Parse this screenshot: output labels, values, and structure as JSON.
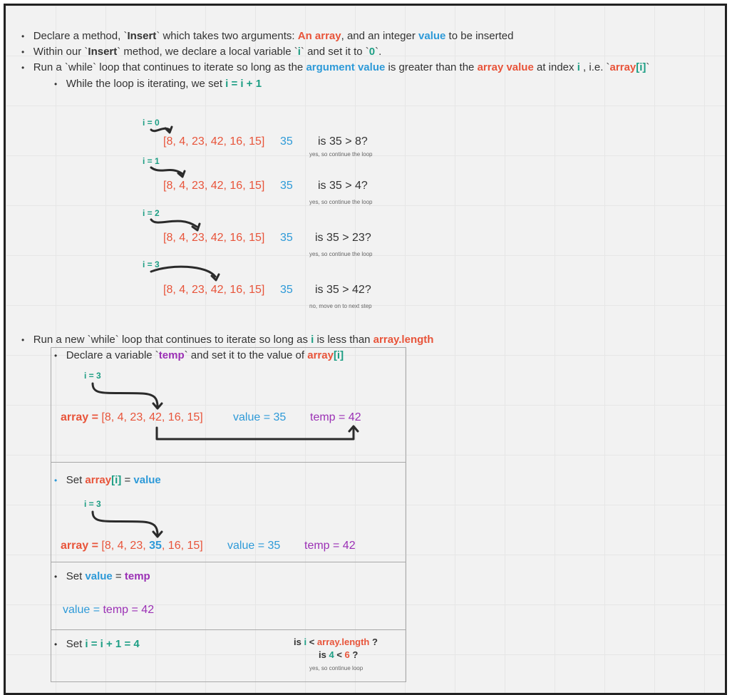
{
  "bullets": {
    "b1": {
      "p1": "Declare a method, `",
      "name": "Insert",
      "p2": "` which takes two arguments: ",
      "arr": "An array",
      "p3": ", and an integer ",
      "val": "value",
      "p4": " to be inserted"
    },
    "b2": {
      "p1": "Within our `",
      "name": "Insert",
      "p2": "` method, we declare a local variable `",
      "i": "i",
      "p3": "` and set it to `",
      "zero": "0",
      "p4": "`."
    },
    "b3": {
      "p1": "Run a `while` loop that continues to iterate so long as the ",
      "argval": "argument value",
      "p2": " is greater than the ",
      "arrval": "array value",
      "p3": " at index ",
      "i": "i",
      "p4": " , i.e. `",
      "arr": "array",
      "idx": "[i]",
      "p5": "`"
    },
    "b4": {
      "p1": "While the loop is iterating, we set ",
      "expr": "i = i + 1"
    }
  },
  "loop1": {
    "array_text": "[8, 4, 23, 42, 16, 15]",
    "value": "35",
    "rows": [
      {
        "i_label": "i = 0",
        "question": "is 35 > 8?",
        "note": "yes, so continue the loop"
      },
      {
        "i_label": "i = 1",
        "question": "is 35 > 4?",
        "note": "yes, so continue the loop"
      },
      {
        "i_label": "i = 2",
        "question": "is 35 > 23?",
        "note": "yes, so continue the loop"
      },
      {
        "i_label": "i = 3",
        "question": "is 35 > 42?",
        "note": "no, move on to next step"
      }
    ]
  },
  "loop2": {
    "intro": {
      "p1": "Run a new `while` loop that continues to iterate so long as ",
      "i": "i",
      "p2": " is less than ",
      "len": "array.length"
    },
    "step1": {
      "p1": "Declare a variable `",
      "temp": "temp",
      "p2": "` and set it to the value of ",
      "arr": "array",
      "idx": "[i]",
      "i_label": "i = 3",
      "array_label": "array = ",
      "array_pre": "[8, 4, 23, ",
      "array_hl": "42",
      "array_post": ", 16, 15]",
      "value_text": "value = 35",
      "temp_text": "temp = 42"
    },
    "step2": {
      "p1": "Set ",
      "arr": "array",
      "idx": "[i]",
      "eq": " = ",
      "val": "value",
      "i_label": "i = 3",
      "array_label": "array = ",
      "array_pre": "[8, 4, 23, ",
      "array_hl": "35",
      "array_post": ", 16, 15]",
      "value_text": "value = 35",
      "temp_text": "temp = 42"
    },
    "step3": {
      "p1": "Set ",
      "val": "value",
      "eq": " = ",
      "temp": "temp",
      "line_val": "value = ",
      "line_temp": "temp = 42"
    },
    "step4": {
      "p1": "Set ",
      "expr": "i = i + 1 = 4",
      "q1_is": "is ",
      "q1_i": "i",
      "q1_lt": " < ",
      "q1_len": "array.length",
      "q1_end": " ?",
      "q2_is": "is ",
      "q2_a": "4",
      "q2_lt": " < ",
      "q2_b": "6",
      "q2_end": " ?",
      "note": "yes, so continue loop"
    }
  },
  "colors": {
    "red": "#e8543a",
    "blue": "#2e9ad8",
    "green": "#1d9e84",
    "purple": "#9b30b5",
    "frame": "#222222"
  }
}
